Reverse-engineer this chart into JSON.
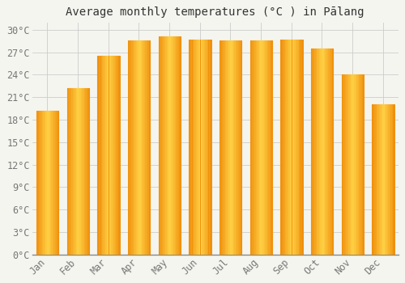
{
  "title": "Average monthly temperatures (°C ) in Pālang",
  "months": [
    "Jan",
    "Feb",
    "Mar",
    "Apr",
    "May",
    "Jun",
    "Jul",
    "Aug",
    "Sep",
    "Oct",
    "Nov",
    "Dec"
  ],
  "values": [
    19.2,
    22.2,
    26.5,
    28.6,
    29.1,
    28.7,
    28.6,
    28.6,
    28.7,
    27.5,
    24.1,
    20.1
  ],
  "bar_color_center": "#FFD04A",
  "bar_color_edge": "#F0920A",
  "background_color": "#f5f5f0",
  "plot_bg_color": "#f5f5f0",
  "grid_color": "#cccccc",
  "ylim": [
    0,
    31
  ],
  "yticks": [
    0,
    3,
    6,
    9,
    12,
    15,
    18,
    21,
    24,
    27,
    30
  ],
  "title_fontsize": 10,
  "tick_fontsize": 8.5,
  "title_color": "#333333",
  "tick_color": "#777777"
}
